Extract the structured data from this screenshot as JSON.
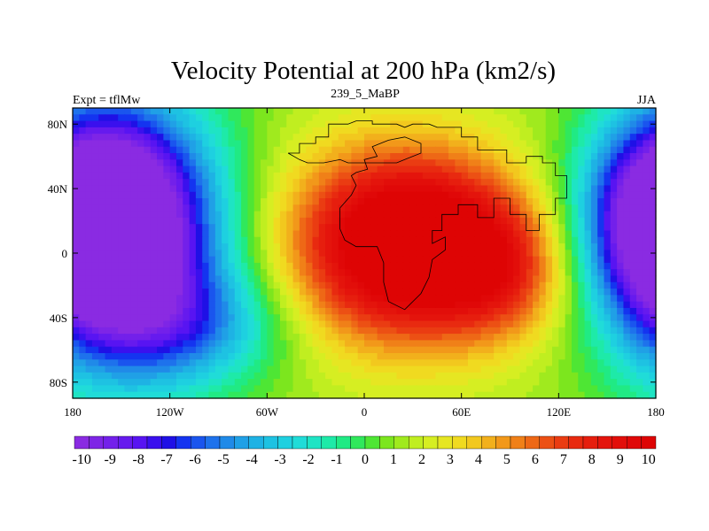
{
  "chart_data": {
    "type": "heatmap",
    "title": "Velocity Potential at 200 hPa (km2/s)",
    "left_label": "Expt = tflMw",
    "center_label": "239_5_MaBP",
    "right_label": "JJA",
    "x_ticks": [
      {
        "value": -180,
        "label": "180"
      },
      {
        "value": -120,
        "label": "120W"
      },
      {
        "value": -60,
        "label": "60W"
      },
      {
        "value": 0,
        "label": "0"
      },
      {
        "value": 60,
        "label": "60E"
      },
      {
        "value": 120,
        "label": "120E"
      },
      {
        "value": 180,
        "label": "180"
      }
    ],
    "y_ticks": [
      {
        "value": 80,
        "label": "80N"
      },
      {
        "value": 40,
        "label": "40N"
      },
      {
        "value": 0,
        "label": "0"
      },
      {
        "value": -40,
        "label": "40S"
      },
      {
        "value": -80,
        "label": "80S"
      }
    ],
    "xlim": [
      -180,
      180
    ],
    "ylim": [
      -90,
      90
    ],
    "color_levels": [
      -10,
      -9.5,
      -9,
      -8.5,
      -8,
      -7.5,
      -7,
      -6.5,
      -6,
      -5.5,
      -5,
      -4.5,
      -4,
      -3.5,
      -3,
      -2.5,
      -2,
      -1.5,
      -1,
      -0.5,
      0,
      0.5,
      1,
      1.5,
      2,
      2.5,
      3,
      3.5,
      4,
      4.5,
      5,
      5.5,
      6,
      6.5,
      7,
      7.5,
      8,
      8.5,
      9,
      9.5,
      10
    ],
    "colorbar_labels": [
      {
        "value": -10,
        "label": "-10"
      },
      {
        "value": -9,
        "label": "-9"
      },
      {
        "value": -8,
        "label": "-8"
      },
      {
        "value": -7,
        "label": "-7"
      },
      {
        "value": -6,
        "label": "-6"
      },
      {
        "value": -5,
        "label": "-5"
      },
      {
        "value": -4,
        "label": "-4"
      },
      {
        "value": -3,
        "label": "-3"
      },
      {
        "value": -2,
        "label": "-2"
      },
      {
        "value": -1,
        "label": "-1"
      },
      {
        "value": 0,
        "label": "0"
      },
      {
        "value": 1,
        "label": "1"
      },
      {
        "value": 2,
        "label": "2"
      },
      {
        "value": 3,
        "label": "3"
      },
      {
        "value": 4,
        "label": "4"
      },
      {
        "value": 5,
        "label": "5"
      },
      {
        "value": 6,
        "label": "6"
      },
      {
        "value": 7,
        "label": "7"
      },
      {
        "value": 8,
        "label": "8"
      },
      {
        "value": 9,
        "label": "9"
      },
      {
        "value": 10,
        "label": "10"
      }
    ],
    "colors": [
      "#8a2be2",
      "#7e25e6",
      "#7320ea",
      "#661aee",
      "#5814f2",
      "#3a10ee",
      "#1f10e6",
      "#1434f0",
      "#1a55ee",
      "#1e72ec",
      "#208ae8",
      "#20a0e6",
      "#1eb2e4",
      "#1ec2e2",
      "#1ed0e0",
      "#20dcd8",
      "#1ee4c4",
      "#1eeaa8",
      "#20ea84",
      "#30e85c",
      "#4ee634",
      "#7ce61e",
      "#a0ea1e",
      "#c0ee20",
      "#d6ee22",
      "#e6e622",
      "#f0da20",
      "#f2c81e",
      "#f2b01c",
      "#f2981a",
      "#f08018",
      "#ee6816",
      "#ec5014",
      "#ea3c12",
      "#e82a10",
      "#e61e0e",
      "#e4140c",
      "#e20e0a",
      "#e00808",
      "#de0404"
    ],
    "value_range": [
      -10,
      10
    ],
    "fields": {
      "anomalies": [
        {
          "lon": 25,
          "lat": 5,
          "amp": 11.5,
          "sx": 50,
          "sy": 42
        },
        {
          "lon": 85,
          "lat": -10,
          "amp": 4.0,
          "sx": 30,
          "sy": 30
        },
        {
          "lon": -150,
          "lat": 10,
          "amp": -11.8,
          "sx": 45,
          "sy": 60
        },
        {
          "lon": 190,
          "lat": 20,
          "amp": -9.0,
          "sx": 35,
          "sy": 40
        },
        {
          "lon": -100,
          "lat": -45,
          "amp": -3.5,
          "sx": 40,
          "sy": 25
        }
      ],
      "background": 1.2
    },
    "coastlines": [
      [
        [
          -47,
          62
        ],
        [
          -40,
          62
        ],
        [
          -40,
          68
        ],
        [
          -30,
          68
        ],
        [
          -30,
          72
        ],
        [
          -22,
          72
        ],
        [
          -22,
          80
        ],
        [
          -10,
          80
        ],
        [
          -5,
          82
        ],
        [
          5,
          82
        ],
        [
          5,
          80
        ],
        [
          20,
          80
        ],
        [
          25,
          78
        ],
        [
          30,
          80
        ],
        [
          40,
          80
        ],
        [
          45,
          78
        ],
        [
          60,
          78
        ],
        [
          60,
          72
        ],
        [
          70,
          72
        ],
        [
          70,
          64
        ],
        [
          88,
          64
        ],
        [
          88,
          56
        ],
        [
          100,
          56
        ],
        [
          100,
          60
        ],
        [
          110,
          60
        ],
        [
          110,
          56
        ],
        [
          118,
          56
        ],
        [
          118,
          48
        ],
        [
          125,
          48
        ],
        [
          125,
          34
        ],
        [
          118,
          34
        ],
        [
          118,
          24
        ],
        [
          108,
          24
        ],
        [
          108,
          14
        ],
        [
          100,
          14
        ],
        [
          100,
          24
        ],
        [
          90,
          24
        ],
        [
          90,
          34
        ],
        [
          80,
          34
        ],
        [
          80,
          22
        ],
        [
          70,
          22
        ],
        [
          70,
          30
        ],
        [
          58,
          30
        ],
        [
          58,
          24
        ],
        [
          48,
          24
        ],
        [
          48,
          14
        ],
        [
          42,
          14
        ],
        [
          42,
          6
        ],
        [
          50,
          10
        ],
        [
          50,
          2
        ],
        [
          42,
          -4
        ],
        [
          40,
          -15
        ],
        [
          35,
          -25
        ],
        [
          25,
          -35
        ],
        [
          15,
          -30
        ],
        [
          12,
          -18
        ],
        [
          12,
          -6
        ],
        [
          8,
          4
        ],
        [
          -5,
          4
        ],
        [
          -12,
          8
        ],
        [
          -15,
          15
        ],
        [
          -15,
          28
        ],
        [
          -8,
          36
        ],
        [
          -5,
          42
        ],
        [
          -8,
          48
        ],
        [
          -5,
          50
        ],
        [
          2,
          52
        ],
        [
          0,
          58
        ],
        [
          8,
          60
        ],
        [
          5,
          66
        ],
        [
          15,
          70
        ],
        [
          25,
          72
        ],
        [
          35,
          68
        ],
        [
          35,
          62
        ],
        [
          25,
          58
        ],
        [
          20,
          56
        ],
        [
          10,
          56
        ],
        [
          0,
          56
        ],
        [
          -10,
          56
        ],
        [
          -15,
          58
        ],
        [
          -25,
          56
        ],
        [
          -35,
          56
        ],
        [
          -40,
          58
        ],
        [
          -47,
          62
        ]
      ]
    ]
  }
}
